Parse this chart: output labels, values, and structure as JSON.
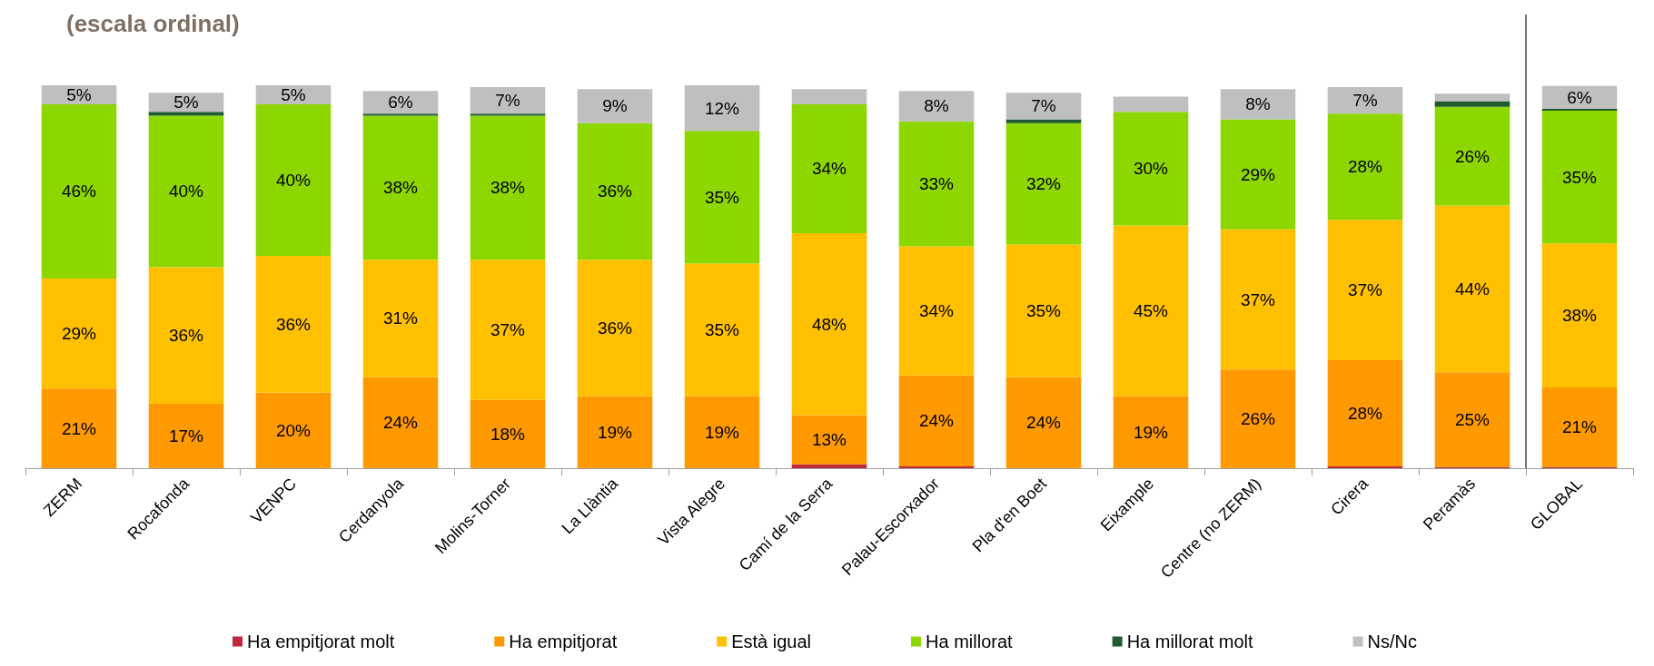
{
  "chart_data": {
    "type": "bar",
    "title": "(escala ordinal)",
    "stacked": true,
    "legend": "bottom",
    "categories": [
      "ZERM",
      "Rocafonda",
      "VENPC",
      "Cerdanyola",
      "Molins-Torner",
      "La Llàntia",
      "Vista Alegre",
      "Camí de la Serra",
      "Palau-Escorxador",
      "Pla d'en Boet",
      "Eixample",
      "Centre (no ZERM)",
      "Cirera",
      "Peramàs",
      "GLOBAL"
    ],
    "series": [
      {
        "name": "Ha empitjorat molt",
        "color": "#c0283c",
        "values": [
          0,
          0,
          0,
          0,
          0,
          0,
          0,
          1,
          0.5,
          0,
          0,
          0,
          0.5,
          0.3,
          0.3
        ],
        "value_labels": [
          null,
          null,
          null,
          null,
          null,
          null,
          null,
          null,
          null,
          null,
          null,
          null,
          null,
          null,
          null
        ]
      },
      {
        "name": "Ha empitjorat",
        "color": "#ff9900",
        "values": [
          21,
          17,
          20,
          24,
          18,
          19,
          19,
          13,
          24,
          24,
          19,
          26,
          28,
          25,
          21
        ],
        "value_labels": [
          "21%",
          "17%",
          "20%",
          "24%",
          "18%",
          "19%",
          "19%",
          "13%",
          "24%",
          "24%",
          "19%",
          "26%",
          "28%",
          "25%",
          "21%"
        ]
      },
      {
        "name": "Està igual",
        "color": "#ffc000",
        "values": [
          29,
          36,
          36,
          31,
          37,
          36,
          35,
          48,
          34,
          35,
          45,
          37,
          37,
          44,
          38
        ],
        "value_labels": [
          "29%",
          "36%",
          "36%",
          "31%",
          "37%",
          "36%",
          "35%",
          "48%",
          "34%",
          "35%",
          "45%",
          "37%",
          "37%",
          "44%",
          "38%"
        ]
      },
      {
        "name": "Ha millorat",
        "color": "#8dd600",
        "values": [
          46,
          40,
          40,
          38,
          38,
          36,
          35,
          34,
          33,
          32,
          30,
          29,
          28,
          26,
          35
        ],
        "value_labels": [
          "46%",
          "40%",
          "40%",
          "38%",
          "38%",
          "36%",
          "35%",
          "34%",
          "33%",
          "32%",
          "30%",
          "29%",
          "28%",
          "26%",
          "35%"
        ]
      },
      {
        "name": "Ha millorat molt",
        "color": "#1e5c2e",
        "values": [
          0,
          1,
          0,
          0.5,
          0.5,
          0,
          0,
          0,
          0,
          1,
          0,
          0,
          0,
          1.5,
          0.5
        ],
        "value_labels": [
          null,
          null,
          null,
          null,
          null,
          null,
          null,
          null,
          null,
          null,
          null,
          null,
          null,
          null,
          null
        ]
      },
      {
        "name": "Ns/Nc",
        "color": "#bfbfbf",
        "values": [
          5,
          5,
          5,
          6,
          7,
          9,
          12,
          4,
          8,
          7,
          4,
          8,
          7,
          2,
          6
        ],
        "value_labels": [
          "5%",
          "5%",
          "5%",
          "6%",
          "7%",
          "9%",
          "12%",
          null,
          "8%",
          "7%",
          null,
          "8%",
          "7%",
          null,
          "6%"
        ]
      }
    ],
    "ref_lines": [
      {
        "axis": "x",
        "value": "GLOBAL",
        "color": "#7f6f63"
      }
    ]
  }
}
